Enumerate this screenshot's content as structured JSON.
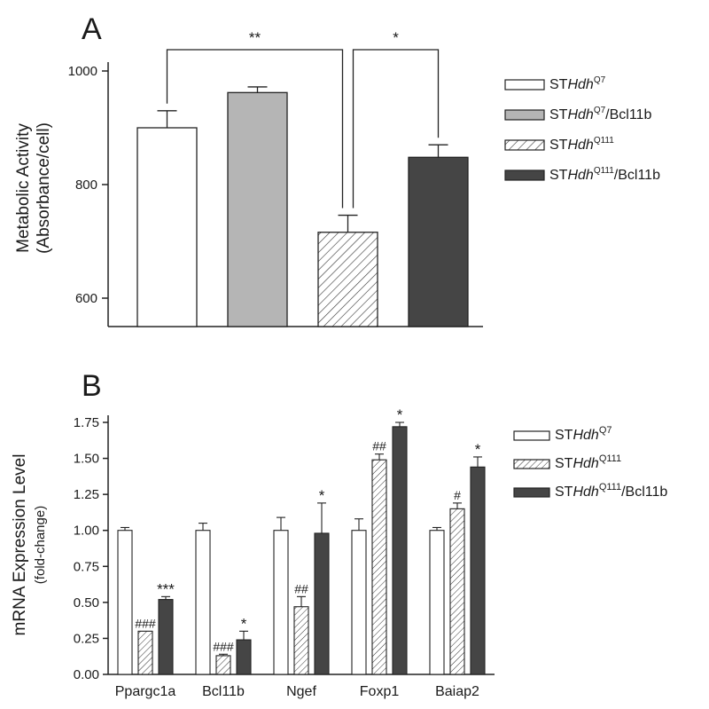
{
  "chart_data": [
    {
      "type": "bar",
      "panel": "A",
      "title": "",
      "ylabel_line1": "Metabolic Activity",
      "ylabel_line2": "(Absorbance/cell)",
      "xlabel": "",
      "ylim": [
        550,
        1000
      ],
      "yticks": [
        600,
        800,
        1000
      ],
      "grid": false,
      "legend_position": "right",
      "series": [
        {
          "name": "STHdhQ7",
          "base": "ST",
          "italic": "Hdh",
          "sup": "Q7",
          "suffix": "",
          "value": 900,
          "error": 30,
          "fill": "white",
          "color": "#ffffff"
        },
        {
          "name": "STHdhQ7/Bcl11b",
          "base": "ST",
          "italic": "Hdh",
          "sup": "Q7",
          "suffix": "/Bcl11b",
          "value": 962,
          "error": 10,
          "fill": "solid",
          "color": "#b5b5b5"
        },
        {
          "name": "STHdhQ111",
          "base": "ST",
          "italic": "Hdh",
          "sup": "Q111",
          "suffix": "",
          "value": 716,
          "error": 30,
          "fill": "hatch",
          "color": "#ffffff"
        },
        {
          "name": "STHdhQ111/Bcl11b",
          "base": "ST",
          "italic": "Hdh",
          "sup": "Q111",
          "suffix": "/Bcl11b",
          "value": 848,
          "error": 22,
          "fill": "solid",
          "color": "#454545"
        }
      ],
      "comparisons": [
        {
          "from": 0,
          "to": 2,
          "label": "**"
        },
        {
          "from": 2,
          "to": 3,
          "label": "*"
        }
      ]
    },
    {
      "type": "bar",
      "panel": "B",
      "title": "",
      "ylabel_line1": "mRNA Expression Level",
      "ylabel_line2": "(fold-change)",
      "xlabel": "",
      "ylim": [
        0,
        1.75
      ],
      "yticks": [
        "0.00",
        "0.25",
        "0.50",
        "0.75",
        "1.00",
        "1.25",
        "1.50",
        "1.75"
      ],
      "grid": false,
      "legend_position": "right",
      "categories": [
        "Ppargc1a",
        "Bcl11b",
        "Ngef",
        "Foxp1",
        "Baiap2"
      ],
      "series": [
        {
          "name": "STHdhQ7",
          "base": "ST",
          "italic": "Hdh",
          "sup": "Q7",
          "suffix": "",
          "fill": "white",
          "color": "#ffffff",
          "values": [
            1.0,
            1.0,
            1.0,
            1.0,
            1.0
          ],
          "errors": [
            0.02,
            0.05,
            0.09,
            0.08,
            0.02
          ],
          "marks": [
            "",
            "",
            "",
            "",
            ""
          ]
        },
        {
          "name": "STHdhQ111",
          "base": "ST",
          "italic": "Hdh",
          "sup": "Q111",
          "suffix": "",
          "fill": "hatch",
          "color": "#ffffff",
          "values": [
            0.3,
            0.13,
            0.47,
            1.49,
            1.15
          ],
          "errors": [
            0.0,
            0.01,
            0.07,
            0.04,
            0.04
          ],
          "marks": [
            "###",
            "###",
            "##",
            "##",
            "#"
          ]
        },
        {
          "name": "STHdhQ111/Bcl11b",
          "base": "ST",
          "italic": "Hdh",
          "sup": "Q111",
          "suffix": "/Bcl11b",
          "fill": "solid",
          "color": "#454545",
          "values": [
            0.52,
            0.24,
            0.98,
            1.72,
            1.44
          ],
          "errors": [
            0.02,
            0.06,
            0.21,
            0.03,
            0.07
          ],
          "marks": [
            "***",
            "*",
            "*",
            "*",
            "*"
          ]
        }
      ]
    }
  ]
}
